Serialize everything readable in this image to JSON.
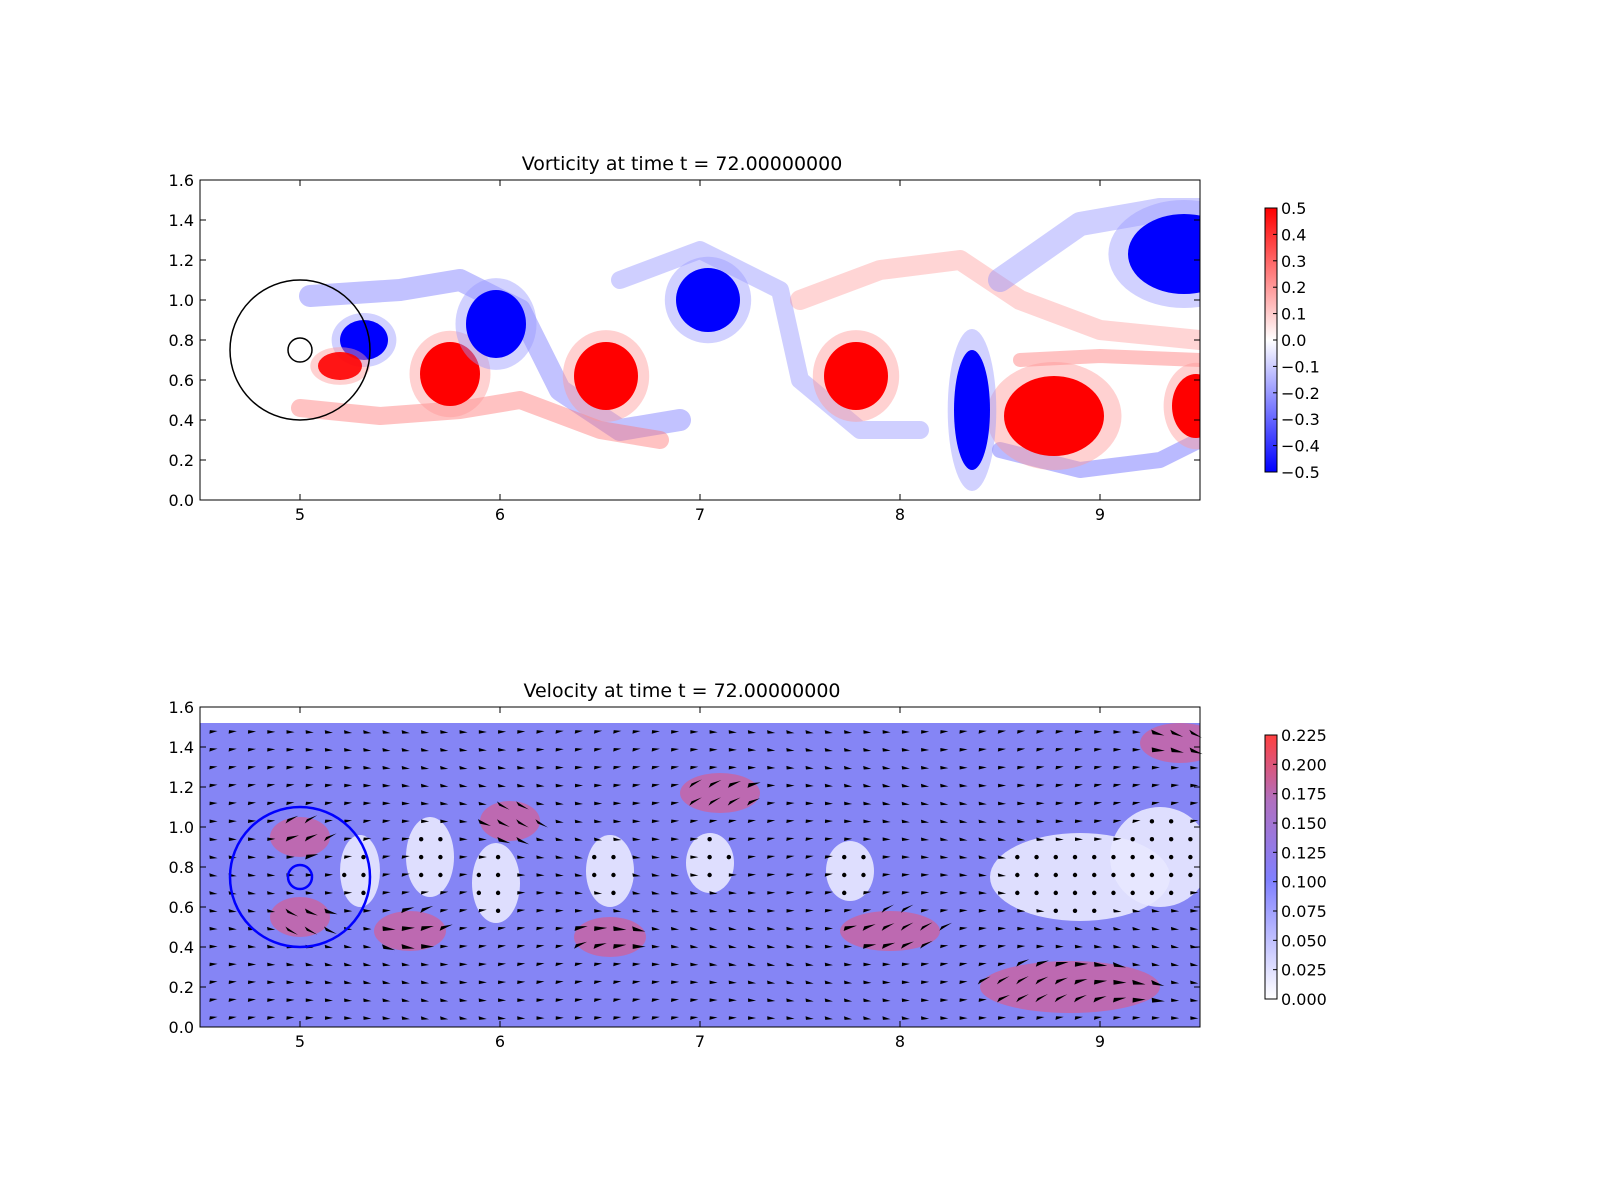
{
  "chart_data": [
    {
      "type": "heatmap",
      "title": "Vorticity at time t =    72.00000000",
      "xlabel": "",
      "ylabel": "",
      "xlim": [
        4.5,
        9.5
      ],
      "ylim": [
        0.0,
        1.6
      ],
      "x_ticks": [
        "5",
        "6",
        "7",
        "8",
        "9"
      ],
      "y_ticks": [
        "0.0",
        "0.2",
        "0.4",
        "0.6",
        "0.8",
        "1.0",
        "1.2",
        "1.4",
        "1.6"
      ],
      "colorbar": {
        "range": [
          -0.5,
          0.5
        ],
        "ticks": [
          "0.5",
          "0.4",
          "0.3",
          "0.2",
          "0.1",
          "0.0",
          "−0.1",
          "−0.2",
          "−0.3",
          "−0.4",
          "−0.5"
        ],
        "colors": [
          "#0000ff",
          "#ffffff",
          "#ff0000"
        ]
      },
      "circles": [
        {
          "cx": 5.0,
          "cy": 0.75,
          "r": 0.35,
          "color": "#000000"
        },
        {
          "cx": 5.0,
          "cy": 0.75,
          "r": 0.06,
          "color": "#000000"
        }
      ],
      "vortices": [
        {
          "x": 5.75,
          "y": 0.63,
          "rx": 0.15,
          "ry": 0.16,
          "w": 0.5
        },
        {
          "x": 5.98,
          "y": 0.88,
          "rx": 0.15,
          "ry": 0.17,
          "w": -0.5
        },
        {
          "x": 6.53,
          "y": 0.62,
          "rx": 0.16,
          "ry": 0.17,
          "w": 0.5
        },
        {
          "x": 7.04,
          "y": 1.0,
          "rx": 0.16,
          "ry": 0.16,
          "w": -0.5
        },
        {
          "x": 7.78,
          "y": 0.62,
          "rx": 0.16,
          "ry": 0.17,
          "w": 0.5
        },
        {
          "x": 8.77,
          "y": 0.42,
          "rx": 0.25,
          "ry": 0.2,
          "w": 0.5
        },
        {
          "x": 9.42,
          "y": 1.23,
          "rx": 0.28,
          "ry": 0.2,
          "w": -0.5
        },
        {
          "x": 9.48,
          "y": 0.47,
          "rx": 0.12,
          "ry": 0.16,
          "w": 0.5
        },
        {
          "x": 8.36,
          "y": 0.45,
          "rx": 0.09,
          "ry": 0.3,
          "w": -0.5
        },
        {
          "x": 5.32,
          "y": 0.8,
          "rx": 0.12,
          "ry": 0.1,
          "w": -0.5
        },
        {
          "x": 5.2,
          "y": 0.67,
          "rx": 0.11,
          "ry": 0.07,
          "w": 0.45
        }
      ]
    },
    {
      "type": "heatmap",
      "title": "Velocity at time t =    72.00000000",
      "xlabel": "",
      "ylabel": "",
      "xlim": [
        4.5,
        9.5
      ],
      "ylim": [
        0.0,
        1.6
      ],
      "x_ticks": [
        "5",
        "6",
        "7",
        "8",
        "9"
      ],
      "y_ticks": [
        "0.0",
        "0.2",
        "0.4",
        "0.6",
        "0.8",
        "1.0",
        "1.2",
        "1.4",
        "1.6"
      ],
      "colorbar": {
        "range": [
          0.0,
          0.225
        ],
        "ticks": [
          "0.225",
          "0.200",
          "0.175",
          "0.150",
          "0.125",
          "0.100",
          "0.075",
          "0.050",
          "0.025",
          "0.000"
        ],
        "colors": [
          "#ffffff",
          "#8080ff",
          "#ff4040"
        ]
      },
      "circles": [
        {
          "cx": 5.0,
          "cy": 0.75,
          "r": 0.35,
          "color": "#0000ff"
        },
        {
          "cx": 5.0,
          "cy": 0.75,
          "r": 0.06,
          "color": "#0000ff"
        }
      ],
      "quiver": {
        "color": "#000000",
        "nx": 52,
        "ny": 17
      }
    }
  ]
}
